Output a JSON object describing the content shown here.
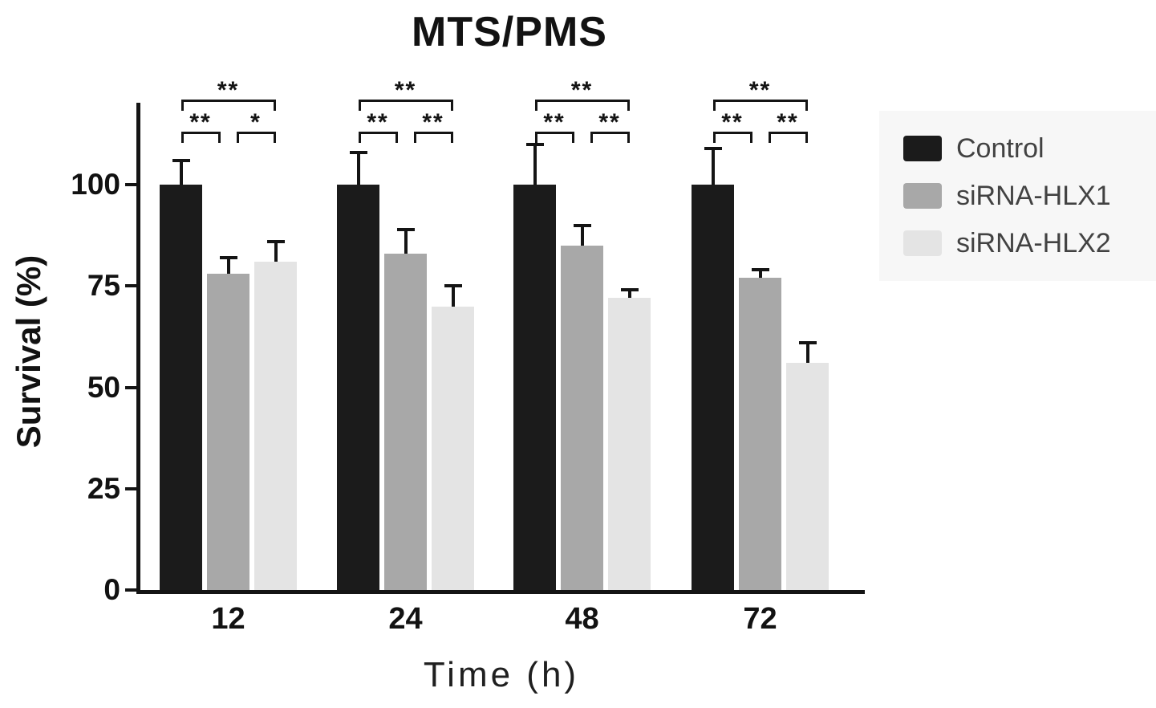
{
  "chart_data": {
    "type": "bar",
    "title": "MTS/PMS",
    "xlabel": "Time (h)",
    "ylabel": "Survival (%)",
    "categories": [
      "12",
      "24",
      "48",
      "72"
    ],
    "yticks": [
      0,
      25,
      50,
      75,
      100
    ],
    "ylim": [
      0,
      120
    ],
    "grid": false,
    "legend_position": "right",
    "axis_color": "#141414",
    "series": [
      {
        "name": "Control",
        "color": "#1b1b1b",
        "values": [
          100,
          100,
          100,
          100
        ],
        "errors": [
          6,
          8,
          10,
          9
        ]
      },
      {
        "name": "siRNA-HLX1",
        "color": "#a8a8a8",
        "values": [
          78,
          83,
          85,
          77
        ],
        "errors": [
          4,
          6,
          5,
          2
        ]
      },
      {
        "name": "siRNA-HLX2",
        "color": "#e4e4e4",
        "values": [
          81,
          70,
          72,
          56
        ],
        "errors": [
          5,
          5,
          2,
          5
        ]
      }
    ],
    "significance": [
      {
        "category": "12",
        "comparisons": [
          {
            "between": [
              "Control",
              "siRNA-HLX2"
            ],
            "label": "**"
          },
          {
            "between": [
              "Control",
              "siRNA-HLX1"
            ],
            "label": "**"
          },
          {
            "between": [
              "siRNA-HLX1",
              "siRNA-HLX2"
            ],
            "label": "*"
          }
        ]
      },
      {
        "category": "24",
        "comparisons": [
          {
            "between": [
              "Control",
              "siRNA-HLX2"
            ],
            "label": "**"
          },
          {
            "between": [
              "Control",
              "siRNA-HLX1"
            ],
            "label": "**"
          },
          {
            "between": [
              "siRNA-HLX1",
              "siRNA-HLX2"
            ],
            "label": "**"
          }
        ]
      },
      {
        "category": "48",
        "comparisons": [
          {
            "between": [
              "Control",
              "siRNA-HLX2"
            ],
            "label": "**"
          },
          {
            "between": [
              "Control",
              "siRNA-HLX1"
            ],
            "label": "**"
          },
          {
            "between": [
              "siRNA-HLX1",
              "siRNA-HLX2"
            ],
            "label": "**"
          }
        ]
      },
      {
        "category": "72",
        "comparisons": [
          {
            "between": [
              "Control",
              "siRNA-HLX2"
            ],
            "label": "**"
          },
          {
            "between": [
              "Control",
              "siRNA-HLX1"
            ],
            "label": "**"
          },
          {
            "between": [
              "siRNA-HLX1",
              "siRNA-HLX2"
            ],
            "label": "**"
          }
        ]
      }
    ]
  },
  "legend": {
    "items": [
      {
        "label": "Control",
        "color": "#1b1b1b"
      },
      {
        "label": "siRNA-HLX1",
        "color": "#a8a8a8"
      },
      {
        "label": "siRNA-HLX2",
        "color": "#e4e4e4"
      }
    ]
  }
}
